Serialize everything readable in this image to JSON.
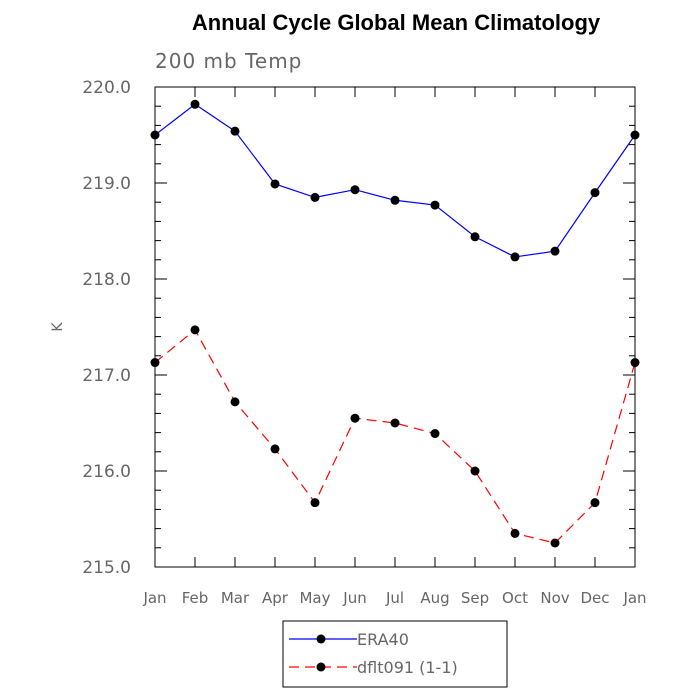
{
  "chart_data": {
    "type": "line",
    "title": "Annual Cycle Global Mean Climatology",
    "subtitle": "200 mb Temp",
    "ylabel": "K",
    "xlabel": "",
    "ylim": [
      215.0,
      220.0
    ],
    "yticks": [
      "215.0",
      "216.0",
      "217.0",
      "218.0",
      "219.0",
      "220.0"
    ],
    "categories": [
      "Jan",
      "Feb",
      "Mar",
      "Apr",
      "May",
      "Jun",
      "Jul",
      "Aug",
      "Sep",
      "Oct",
      "Nov",
      "Dec",
      "Jan"
    ],
    "series": [
      {
        "name": "ERA40",
        "color": "#0000ff",
        "dash": "solid",
        "values": [
          219.5,
          219.82,
          219.54,
          218.99,
          218.85,
          218.93,
          218.82,
          218.77,
          218.44,
          218.23,
          218.29,
          218.9,
          219.5
        ]
      },
      {
        "name": "dflt091 (1-1)",
        "color": "#ff0000",
        "dash": "dashed",
        "values": [
          217.13,
          217.47,
          216.72,
          216.23,
          215.67,
          216.55,
          216.5,
          216.39,
          216.0,
          215.35,
          215.25,
          215.67,
          217.13
        ]
      }
    ],
    "grid": false,
    "legend_position": "bottom-center"
  }
}
